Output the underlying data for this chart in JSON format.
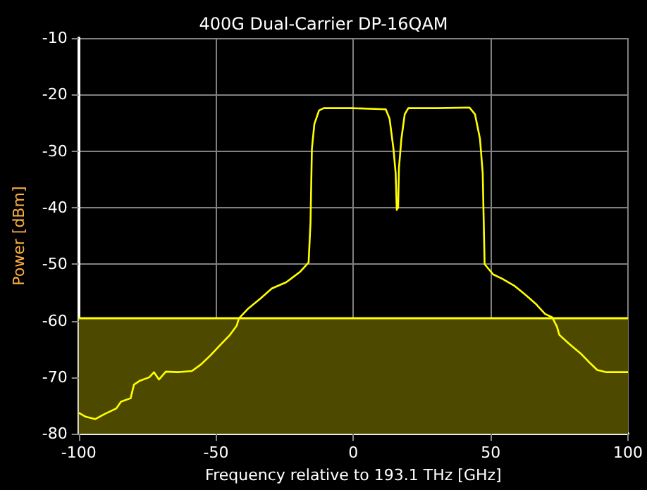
{
  "chart_data": {
    "type": "line",
    "title": "400G Dual-Carrier DP-16QAM",
    "xlabel": "Frequency relative to 193.1 THz [GHz]",
    "ylabel": "Power [dBm]",
    "xlim": [
      -100,
      100
    ],
    "xticks": [
      -100,
      -50,
      0,
      50,
      100
    ],
    "ylim": [
      -80,
      -10
    ],
    "yticks": [
      -80,
      -70,
      -60,
      -50,
      -40,
      -30,
      -20,
      -10
    ],
    "grid": true,
    "bands": [
      {
        "axis": "y",
        "from": -80,
        "to": -59.5,
        "color": "#4d4a00"
      }
    ],
    "ref_lines": [
      {
        "axis": "y",
        "value": -59.5,
        "color": "#ffff00"
      }
    ],
    "series": [
      {
        "color": "#ffff00",
        "x": [
          -100,
          -97.4,
          -94,
          -90.6,
          -86.3,
          -84.6,
          -81.1,
          -79.9,
          -77.7,
          -74.3,
          -72.6,
          -70.8,
          -68.3,
          -64,
          -58.8,
          -55.4,
          -52,
          -48.5,
          -45.1,
          -42.5,
          -41.7,
          -38.2,
          -33.9,
          -29.7,
          -24.5,
          -22.8,
          -19.3,
          -16.3,
          -15.6,
          -15.1,
          -14.2,
          -12.5,
          -10.8,
          -0.5,
          11.8,
          13.2,
          14.6,
          15.4,
          15.8,
          16.3,
          16.6,
          17.5,
          18.7,
          20,
          30.3,
          42.3,
          44.3,
          46.1,
          47.1,
          47.8,
          50.9,
          54.3,
          58.6,
          62.9,
          66.4,
          69.8,
          72.4,
          74.1,
          75,
          78.4,
          82.8,
          86.2,
          88.8,
          92.2,
          100
        ],
        "values": [
          -76.3,
          -77,
          -77.4,
          -76.5,
          -75.5,
          -74.3,
          -73.7,
          -71.3,
          -70.6,
          -70,
          -69.1,
          -70.4,
          -69,
          -69.1,
          -68.9,
          -67.7,
          -66.1,
          -64.3,
          -62.6,
          -60.9,
          -59.6,
          -57.8,
          -56.1,
          -54.3,
          -53.2,
          -52.6,
          -51.3,
          -49.7,
          -42.6,
          -29.6,
          -25.2,
          -22.8,
          -22.4,
          -22.4,
          -22.6,
          -24.3,
          -29.6,
          -33.9,
          -40.4,
          -40,
          -33,
          -27.8,
          -23.5,
          -22.4,
          -22.4,
          -22.3,
          -23.5,
          -27.8,
          -33.9,
          -50,
          -51.8,
          -52.6,
          -53.8,
          -55.5,
          -57,
          -58.8,
          -59.4,
          -61,
          -62.5,
          -64,
          -65.8,
          -67.5,
          -68.7,
          -69.1,
          -69.1
        ]
      }
    ]
  }
}
